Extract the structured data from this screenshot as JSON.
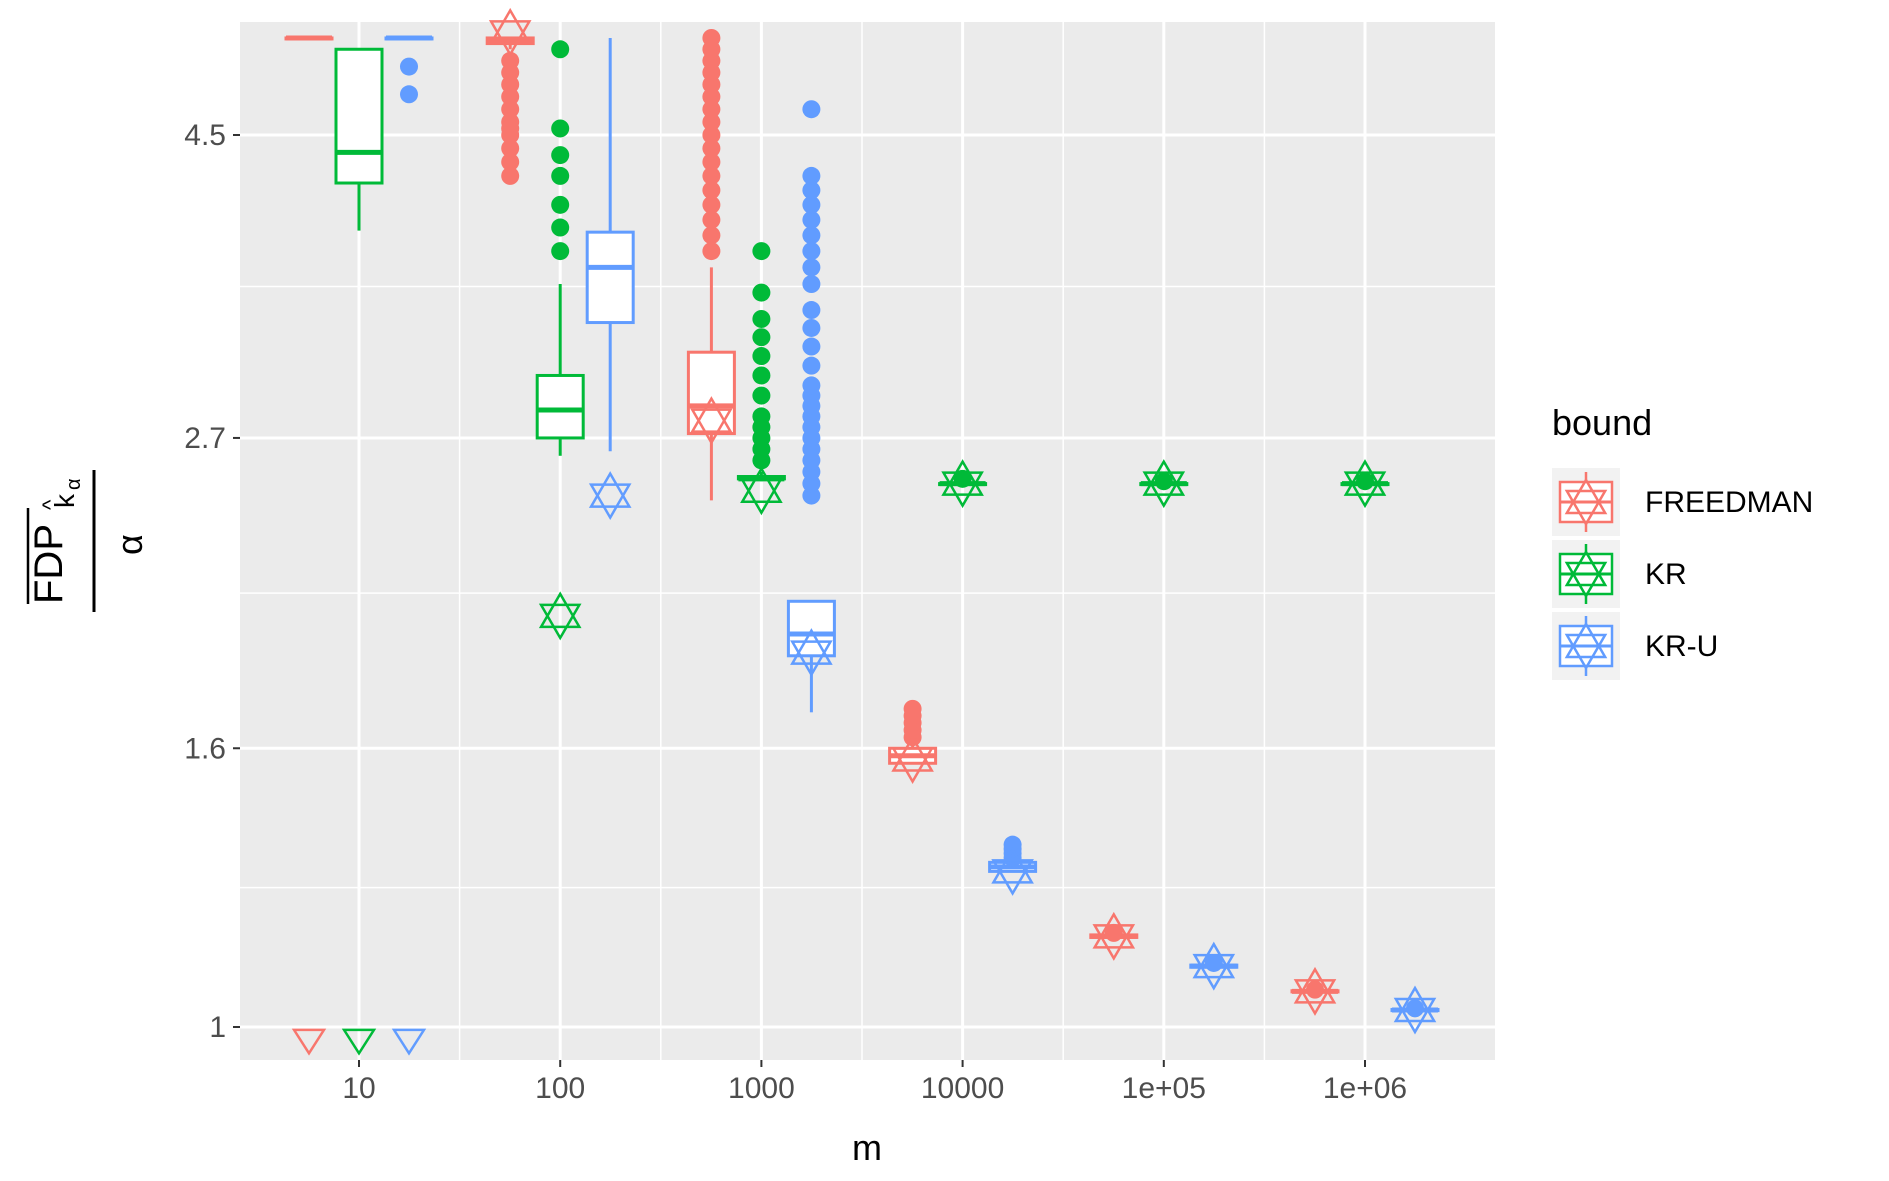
{
  "chart_data": {
    "type": "boxplot",
    "xlabel": "m",
    "ylabel": {
      "numerator_main": "FDP",
      "numerator_sub": "k",
      "numerator_subsub": "α",
      "hat": "^",
      "denominator": "α"
    },
    "x_scale": "log10",
    "x_ticks": [
      {
        "value": 10,
        "label": "10"
      },
      {
        "value": 100,
        "label": "100"
      },
      {
        "value": 1000,
        "label": "1000"
      },
      {
        "value": 10000,
        "label": "10000"
      },
      {
        "value": 100000,
        "label": "1e+05"
      },
      {
        "value": 1000000,
        "label": "1e+06"
      }
    ],
    "y_scale": "log",
    "y_ticks": [
      {
        "value": 1,
        "label": "1"
      },
      {
        "value": 1.6,
        "label": "1.6"
      },
      {
        "value": 2.7,
        "label": "2.7"
      },
      {
        "value": 4.5,
        "label": "4.5"
      }
    ],
    "ylim": [
      0.97,
      5.6
    ],
    "grid": true,
    "legend": {
      "title": "bound",
      "placement": "right",
      "entries": [
        {
          "label": "FREEDMAN",
          "color": "#F8766D"
        },
        {
          "label": "KR",
          "color": "#00BA38"
        },
        {
          "label": "KR-U",
          "color": "#619CFF"
        }
      ]
    },
    "series": [
      {
        "name": "FREEDMAN",
        "color": "#F8766D",
        "groups": [
          {
            "m": 10,
            "q1": 5.3,
            "median": 5.3,
            "q3": 5.3,
            "low": 5.3,
            "high": 5.3,
            "outliers": [],
            "mean": 0.98
          },
          {
            "m": 100,
            "q1": 5.25,
            "median": 5.28,
            "q3": 5.3,
            "low": 5.2,
            "high": 5.3,
            "outliers": [
              5.1,
              5.0,
              4.9,
              4.8,
              4.7,
              4.6,
              4.55,
              4.5,
              4.4,
              4.3,
              4.2
            ],
            "mean": 5.35
          },
          {
            "m": 1000,
            "q1": 2.72,
            "median": 2.85,
            "q3": 3.12,
            "low": 2.43,
            "high": 3.6,
            "outliers": [
              3.7,
              3.8,
              3.9,
              4.0,
              4.1,
              4.2,
              4.3,
              4.4,
              4.5,
              4.6,
              4.7,
              4.8,
              4.9,
              5.0,
              5.1,
              5.2,
              5.3
            ],
            "mean": 2.78
          },
          {
            "m": 10000,
            "q1": 1.56,
            "median": 1.58,
            "q3": 1.6,
            "low": 1.56,
            "high": 1.61,
            "outliers": [
              1.63,
              1.65,
              1.67,
              1.69,
              1.71
            ],
            "mean": 1.57
          },
          {
            "m": 100000,
            "q1": 1.163,
            "median": 1.165,
            "q3": 1.168,
            "low": 1.16,
            "high": 1.17,
            "outliers": [
              1.172
            ],
            "mean": 1.165
          },
          {
            "m": 1000000,
            "q1": 1.061,
            "median": 1.062,
            "q3": 1.063,
            "low": 1.06,
            "high": 1.064,
            "outliers": [
              1.065
            ],
            "mean": 1.062
          }
        ]
      },
      {
        "name": "KR",
        "color": "#00BA38",
        "groups": [
          {
            "m": 10,
            "q1": 4.15,
            "median": 4.37,
            "q3": 5.2,
            "low": 3.83,
            "high": 5.2,
            "outliers": [],
            "mean": 0.98
          },
          {
            "m": 100,
            "q1": 2.7,
            "median": 2.83,
            "q3": 3.0,
            "low": 2.62,
            "high": 3.5,
            "outliers": [
              3.7,
              3.85,
              4.0,
              4.2,
              4.35,
              4.55,
              5.2
            ],
            "mean": 2.0
          },
          {
            "m": 1000,
            "q1": 2.52,
            "median": 2.52,
            "q3": 2.53,
            "low": 2.51,
            "high": 2.55,
            "outliers": [
              2.6,
              2.65,
              2.7,
              2.75,
              2.8,
              2.9,
              3.0,
              3.1,
              3.2,
              3.3,
              3.45,
              3.7
            ],
            "mean": 2.47
          },
          {
            "m": 10000,
            "q1": 2.5,
            "median": 2.5,
            "q3": 2.5,
            "low": 2.49,
            "high": 2.51,
            "outliers": [
              2.52
            ],
            "mean": 2.5
          },
          {
            "m": 100000,
            "q1": 2.5,
            "median": 2.5,
            "q3": 2.5,
            "low": 2.49,
            "high": 2.51,
            "outliers": [
              2.51
            ],
            "mean": 2.5
          },
          {
            "m": 1000000,
            "q1": 2.5,
            "median": 2.5,
            "q3": 2.5,
            "low": 2.49,
            "high": 2.51,
            "outliers": [
              2.51
            ],
            "mean": 2.5
          }
        ]
      },
      {
        "name": "KR-U",
        "color": "#619CFF",
        "groups": [
          {
            "m": 10,
            "q1": 5.3,
            "median": 5.3,
            "q3": 5.3,
            "low": 5.3,
            "high": 5.3,
            "outliers": [
              5.05,
              4.82
            ],
            "mean": 0.98
          },
          {
            "m": 100,
            "q1": 3.28,
            "median": 3.6,
            "q3": 3.82,
            "low": 2.64,
            "high": 5.3,
            "outliers": [],
            "mean": 2.45
          },
          {
            "m": 1000,
            "q1": 1.87,
            "median": 1.94,
            "q3": 2.05,
            "low": 1.7,
            "high": 2.05,
            "outliers": [
              2.45,
              2.5,
              2.55,
              2.6,
              2.65,
              2.7,
              2.75,
              2.8,
              2.85,
              2.9,
              2.95,
              3.05,
              3.15,
              3.25,
              3.35,
              3.5,
              3.6,
              3.7,
              3.8,
              3.9,
              4.0,
              4.1,
              4.2,
              4.7
            ],
            "mean": 1.88
          },
          {
            "m": 10000,
            "q1": 1.3,
            "median": 1.31,
            "q3": 1.32,
            "low": 1.3,
            "high": 1.32,
            "outliers": [
              1.33,
              1.34,
              1.35,
              1.36
            ],
            "mean": 1.3
          },
          {
            "m": 100000,
            "q1": 1.106,
            "median": 1.108,
            "q3": 1.11,
            "low": 1.105,
            "high": 1.112,
            "outliers": [
              1.114
            ],
            "mean": 1.108
          },
          {
            "m": 1000000,
            "q1": 1.028,
            "median": 1.029,
            "q3": 1.03,
            "low": 1.027,
            "high": 1.031,
            "outliers": [
              1.032
            ],
            "mean": 1.029
          }
        ]
      }
    ]
  }
}
